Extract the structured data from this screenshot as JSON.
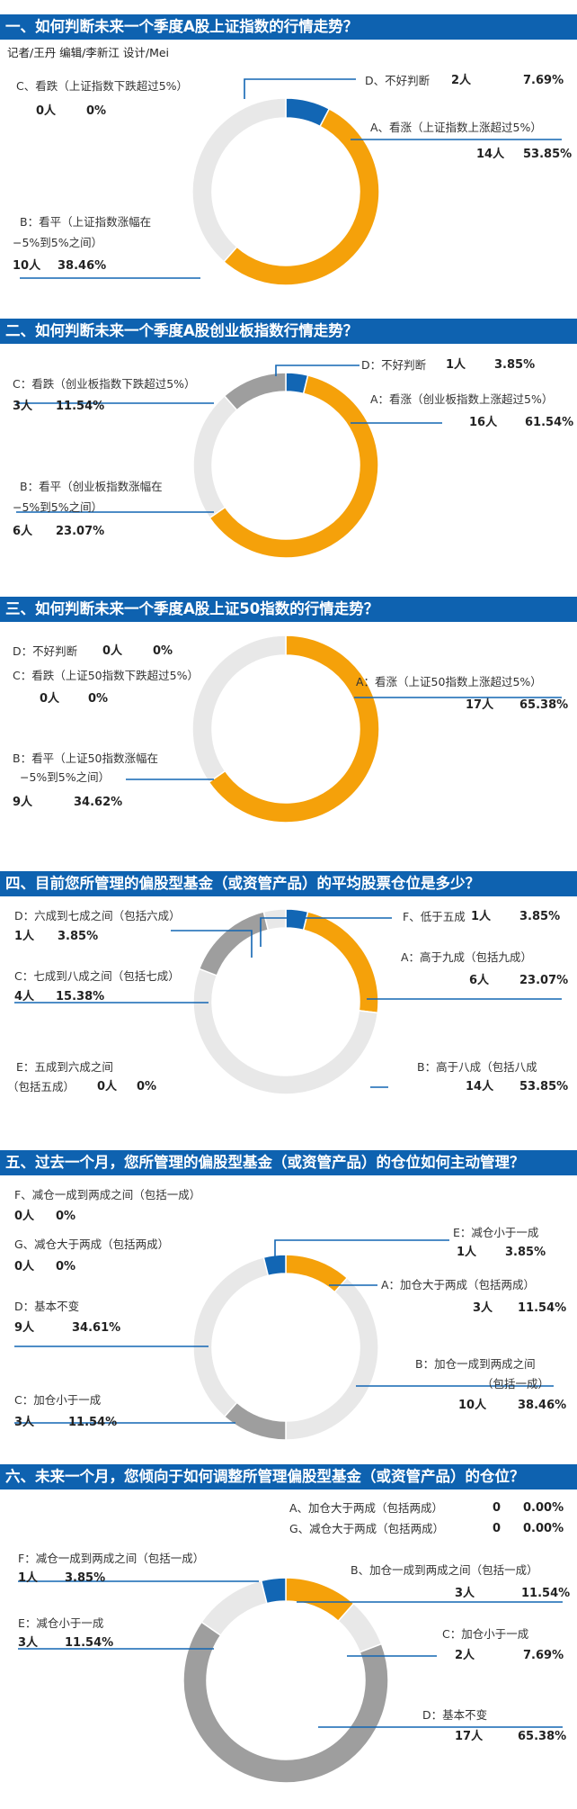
{
  "byline": "记者/王丹  编辑/李新江  设计/Mei",
  "colors": {
    "orange": "#f5a10a",
    "light": "#e8e8e8",
    "gray": "#9e9e9e",
    "blue": "#1266b4",
    "header": "#0e62b0"
  },
  "chart_data": [
    {
      "type": "pie",
      "title": "一、如何判断未来一个季度A股上证指数的行情走势？",
      "slices": [
        {
          "label": "A、看涨（上证指数上涨超过5%）",
          "count": "14人",
          "percent": "53.85%",
          "value": 53.85,
          "color": "orange"
        },
        {
          "label": "B：看平（上证指数涨幅在",
          "label2": "−5%到5%之间）",
          "count": "10人",
          "percent": "38.46%",
          "value": 38.46,
          "color": "light"
        },
        {
          "label": "C、看跌（上证指数下跌超过5%）",
          "count": "0人",
          "percent": "0%",
          "value": 0,
          "color": "gray"
        },
        {
          "label": "D、不好判断",
          "count": "2人",
          "percent": "7.69%",
          "value": 7.69,
          "color": "blue"
        }
      ]
    },
    {
      "type": "pie",
      "title": "二、如何判断未来一个季度A股创业板指数行情走势？",
      "slices": [
        {
          "label": "A：看涨（创业板指数上涨超过5%）",
          "count": "16人",
          "percent": "61.54%",
          "value": 61.54,
          "color": "orange"
        },
        {
          "label": "B：看平（创业板指数涨幅在",
          "label2": "−5%到5%之间）",
          "count": "6人",
          "percent": "23.07%",
          "value": 23.07,
          "color": "light"
        },
        {
          "label": "C：看跌（创业板指数下跌超过5%）",
          "count": "3人",
          "percent": "11.54%",
          "value": 11.54,
          "color": "gray"
        },
        {
          "label": "D：不好判断",
          "count": "1人",
          "percent": "3.85%",
          "value": 3.85,
          "color": "blue"
        }
      ]
    },
    {
      "type": "pie",
      "title": "三、如何判断未来一个季度A股上证50指数的行情走势？",
      "slices": [
        {
          "label": "A：看涨（上证50指数上涨超过5%）",
          "count": "17人",
          "percent": "65.38%",
          "value": 65.38,
          "color": "orange"
        },
        {
          "label": "B：看平（上证50指数涨幅在",
          "label2": "−5%到5%之间）",
          "count": "9人",
          "percent": "34.62%",
          "value": 34.62,
          "color": "light"
        },
        {
          "label": "C：看跌（上证50指数下跌超过5%）",
          "count": "0人",
          "percent": "0%",
          "value": 0,
          "color": "gray"
        },
        {
          "label": "D：不好判断",
          "count": "0人",
          "percent": "0%",
          "value": 0,
          "color": "blue"
        }
      ]
    },
    {
      "type": "pie",
      "title": "四、目前您所管理的偏股型基金（或资管产品）的平均股票仓位是多少？",
      "slices": [
        {
          "label": "A：高于九成（包括九成）",
          "count": "6人",
          "percent": "23.07%",
          "value": 23.07,
          "color": "orange"
        },
        {
          "label": "B：高于八成（包括八成",
          "count": "14人",
          "percent": "53.85%",
          "value": 53.85,
          "color": "light"
        },
        {
          "label": "C：七成到八成之间（包括七成）",
          "count": "4人",
          "percent": "15.38%",
          "value": 15.38,
          "color": "gray"
        },
        {
          "label": "D：六成到七成之间（包括六成）",
          "count": "1人",
          "percent": "3.85%",
          "value": 3.85,
          "color": "light"
        },
        {
          "label": "E：五成到六成之间",
          "label2": "（包括五成）",
          "count": "0人",
          "percent": "0%",
          "value": 0,
          "color": "gray"
        },
        {
          "label": "F、低于五成",
          "count": "1人",
          "percent": "3.85%",
          "value": 3.85,
          "color": "blue"
        }
      ]
    },
    {
      "type": "pie",
      "title": "五、过去一个月，您所管理的偏股型基金（或资管产品）的仓位如何主动管理？",
      "slices": [
        {
          "label": "A：加仓大于两成（包括两成）",
          "count": "3人",
          "percent": "11.54%",
          "value": 11.54,
          "color": "orange"
        },
        {
          "label": "B：加仓一成到两成之间",
          "label2": "（包括一成）",
          "count": "10人",
          "percent": "38.46%",
          "value": 38.46,
          "color": "light"
        },
        {
          "label": "C：加仓小于一成",
          "count": "3人",
          "percent": "11.54%",
          "value": 11.54,
          "color": "gray"
        },
        {
          "label": "D：基本不变",
          "count": "9人",
          "percent": "34.61%",
          "value": 34.61,
          "color": "light"
        },
        {
          "label": "E：减仓小于一成",
          "count": "1人",
          "percent": "3.85%",
          "value": 3.85,
          "color": "blue"
        },
        {
          "label": "F、减仓一成到两成之间（包括一成）",
          "count": "0人",
          "percent": "0%",
          "value": 0,
          "color": "gray"
        },
        {
          "label": "G、减仓大于两成（包括两成）",
          "count": "0人",
          "percent": "0%",
          "value": 0,
          "color": "gray"
        }
      ]
    },
    {
      "type": "pie",
      "title": "六、未来一个月，您倾向于如何调整所管理偏股型基金（或资管产品）的仓位？",
      "slices": [
        {
          "label": "A、加仓大于两成（包括两成）",
          "count": "0",
          "percent": "0.00%",
          "value": 0,
          "color": "orange"
        },
        {
          "label": "B、加仓一成到两成之间（包括一成）",
          "count": "3人",
          "percent": "11.54%",
          "value": 11.54,
          "color": "orange"
        },
        {
          "label": "C：加仓小于一成",
          "count": "2人",
          "percent": "7.69%",
          "value": 7.69,
          "color": "light"
        },
        {
          "label": "D：基本不变",
          "count": "17人",
          "percent": "65.38%",
          "value": 65.38,
          "color": "gray"
        },
        {
          "label": "E：减仓小于一成",
          "count": "3人",
          "percent": "11.54%",
          "value": 11.54,
          "color": "light"
        },
        {
          "label": "F：减仓一成到两成之间（包括一成）",
          "count": "1人",
          "percent": "3.85%",
          "value": 3.85,
          "color": "blue"
        },
        {
          "label": "G、减仓大于两成（包括两成）",
          "count": "0",
          "percent": "0.00%",
          "value": 0,
          "color": "gray"
        }
      ]
    }
  ]
}
